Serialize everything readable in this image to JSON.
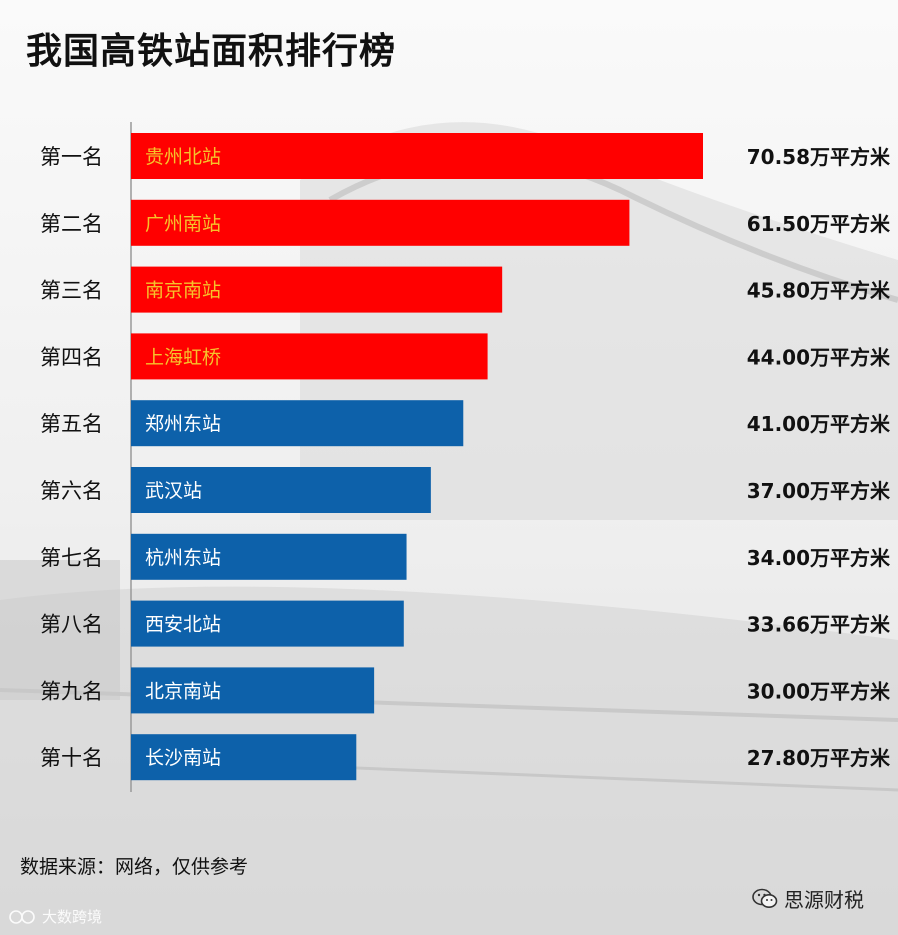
{
  "title": "我国高铁站面积排行榜",
  "source": "数据来源：网络，仅供参考",
  "brand": {
    "name": "思源财税",
    "icon": "wechat-icon"
  },
  "watermark": {
    "text": "大数跨境"
  },
  "colors": {
    "top_bar": "#ff0000",
    "other_bar": "#0d61aa",
    "top_text": "#f6c22b",
    "other_text": "#ffffff"
  },
  "chart_data": {
    "type": "bar",
    "orientation": "horizontal",
    "ranks": [
      "第一名",
      "第二名",
      "第三名",
      "第四名",
      "第五名",
      "第六名",
      "第七名",
      "第八名",
      "第九名",
      "第十名"
    ],
    "categories": [
      "贵州北站",
      "广州南站",
      "南京南站",
      "上海虹桥",
      "郑州东站",
      "武汉站",
      "杭州东站",
      "西安北站",
      "北京南站",
      "长沙南站"
    ],
    "values": [
      70.58,
      61.5,
      45.8,
      44.0,
      41.0,
      37.0,
      34.0,
      33.66,
      30.0,
      27.8
    ],
    "value_labels": [
      "70.58万平方米",
      "61.50万平方米",
      "45.80万平方米",
      "44.00万平方米",
      "41.00万平方米",
      "37.00万平方米",
      "34.00万平方米",
      "33.66万平方米",
      "30.00万平方米",
      "27.80万平方米"
    ],
    "highlight_top": 4,
    "title": "我国高铁站面积排行榜",
    "xlabel": "",
    "ylabel": "",
    "xlim": [
      0,
      70.58
    ],
    "grid": false,
    "legend": "none"
  }
}
